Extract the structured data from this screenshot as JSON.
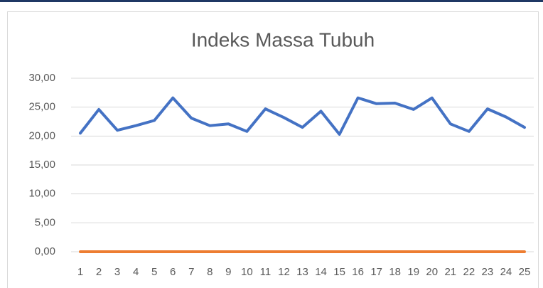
{
  "chart_data": {
    "type": "line",
    "title": "Indeks Massa Tubuh",
    "categories": [
      "1",
      "2",
      "3",
      "4",
      "5",
      "6",
      "7",
      "8",
      "9",
      "10",
      "11",
      "12",
      "13",
      "14",
      "15",
      "16",
      "17",
      "18",
      "19",
      "20",
      "21",
      "22",
      "23",
      "24",
      "25"
    ],
    "series": [
      {
        "color": "#4472c4",
        "values": [
          20.5,
          24.6,
          21.0,
          21.8,
          22.7,
          26.6,
          23.1,
          21.8,
          22.1,
          20.8,
          24.7,
          23.2,
          21.5,
          24.3,
          20.3,
          26.6,
          25.6,
          25.7,
          24.6,
          26.6,
          22.1,
          20.8,
          24.7,
          23.3,
          21.5
        ]
      },
      {
        "color": "#ed7d31",
        "values": [
          0,
          0,
          0,
          0,
          0,
          0,
          0,
          0,
          0,
          0,
          0,
          0,
          0,
          0,
          0,
          0,
          0,
          0,
          0,
          0,
          0,
          0,
          0,
          0,
          0
        ]
      }
    ],
    "ylim": [
      0,
      30
    ],
    "yticks": [
      {
        "value": 0,
        "label": "0,00"
      },
      {
        "value": 5,
        "label": "5,00"
      },
      {
        "value": 10,
        "label": "10,00"
      },
      {
        "value": 15,
        "label": "15,00"
      },
      {
        "value": 20,
        "label": "20,00"
      },
      {
        "value": 25,
        "label": "25,00"
      },
      {
        "value": 30,
        "label": "30,00"
      }
    ],
    "grid": true
  }
}
